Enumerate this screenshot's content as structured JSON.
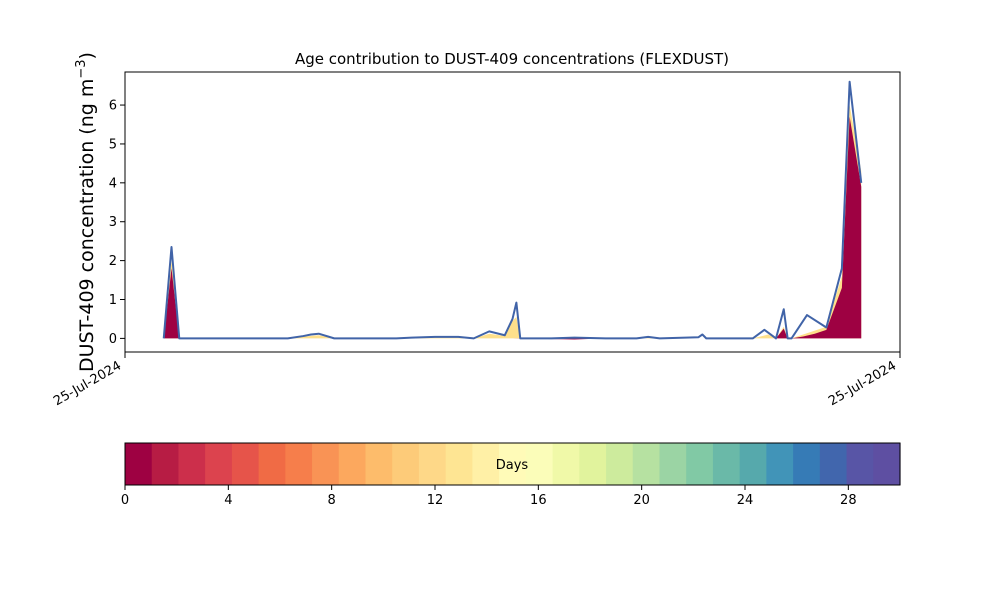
{
  "chart_data": [
    {
      "type": "area",
      "title": "Age contribution to DUST-409 concentrations (FLEXDUST)",
      "ylabel": "DUST-409 concentration (ng m",
      "ylabel_sup": "−3",
      "ylabel_close": ")",
      "xlabel": "",
      "ylim": [
        -0.35,
        6.85
      ],
      "y_ticks": [
        0,
        1,
        2,
        3,
        4,
        5,
        6
      ],
      "x_tick_labels": [
        "25-Jul-2024",
        "25-Jul-2024"
      ],
      "grid": false,
      "series": [
        {
          "color": "#9e0142",
          "points": [
            [
              0.05,
              0
            ],
            [
              0.06,
              1.8
            ],
            [
              0.07,
              0
            ],
            [
              0.5,
              0
            ],
            [
              0.58,
              -0.03
            ],
            [
              0.62,
              0
            ],
            [
              0.84,
              0
            ],
            [
              0.85,
              0.25
            ],
            [
              0.855,
              0
            ],
            [
              0.86,
              0
            ],
            [
              0.875,
              0.05
            ],
            [
              0.89,
              0.12
            ],
            [
              0.905,
              0.22
            ],
            [
              0.925,
              1.3
            ],
            [
              0.935,
              5.7
            ],
            [
              0.95,
              3.9
            ]
          ]
        },
        {
          "color": "#fee08b",
          "points": [
            [
              0.05,
              0
            ],
            [
              0.06,
              2.0
            ],
            [
              0.07,
              0
            ],
            [
              0.21,
              0
            ],
            [
              0.23,
              0.05
            ],
            [
              0.25,
              0.08
            ],
            [
              0.27,
              0
            ],
            [
              0.35,
              0
            ],
            [
              0.4,
              0.02
            ],
            [
              0.43,
              0.02
            ],
            [
              0.45,
              0
            ],
            [
              0.47,
              0.12
            ],
            [
              0.49,
              0.06
            ],
            [
              0.5,
              0.45
            ],
            [
              0.505,
              0.55
            ],
            [
              0.51,
              0
            ],
            [
              0.67,
              0
            ],
            [
              0.68,
              0.03
            ],
            [
              0.69,
              0
            ],
            [
              0.81,
              0
            ],
            [
              0.83,
              0.1
            ],
            [
              0.84,
              0
            ],
            [
              0.85,
              0.3
            ],
            [
              0.855,
              0
            ],
            [
              0.86,
              0
            ],
            [
              0.875,
              0.1
            ],
            [
              0.89,
              0.2
            ],
            [
              0.905,
              0.3
            ],
            [
              0.925,
              1.6
            ],
            [
              0.935,
              6.0
            ],
            [
              0.95,
              4.3
            ]
          ]
        }
      ],
      "total": {
        "color": "#4164a8",
        "points": [
          [
            0.05,
            0
          ],
          [
            0.06,
            2.35
          ],
          [
            0.07,
            0
          ],
          [
            0.21,
            0
          ],
          [
            0.23,
            0.06
          ],
          [
            0.24,
            0.1
          ],
          [
            0.25,
            0.12
          ],
          [
            0.27,
            0
          ],
          [
            0.35,
            0
          ],
          [
            0.37,
            0.02
          ],
          [
            0.4,
            0.04
          ],
          [
            0.43,
            0.04
          ],
          [
            0.45,
            0
          ],
          [
            0.47,
            0.18
          ],
          [
            0.49,
            0.08
          ],
          [
            0.5,
            0.5
          ],
          [
            0.505,
            0.92
          ],
          [
            0.51,
            0
          ],
          [
            0.55,
            0
          ],
          [
            0.58,
            0.02
          ],
          [
            0.62,
            0
          ],
          [
            0.66,
            0
          ],
          [
            0.675,
            0.04
          ],
          [
            0.69,
            0
          ],
          [
            0.74,
            0.03
          ],
          [
            0.745,
            0.1
          ],
          [
            0.75,
            0
          ],
          [
            0.81,
            0
          ],
          [
            0.825,
            0.22
          ],
          [
            0.84,
            0
          ],
          [
            0.85,
            0.75
          ],
          [
            0.855,
            0
          ],
          [
            0.86,
            0
          ],
          [
            0.88,
            0.6
          ],
          [
            0.905,
            0.28
          ],
          [
            0.925,
            1.8
          ],
          [
            0.935,
            6.6
          ],
          [
            0.95,
            4.0
          ]
        ]
      }
    },
    {
      "type": "heatmap",
      "label": "Days",
      "range": [
        0,
        30
      ],
      "ticks": [
        0,
        4,
        8,
        12,
        16,
        20,
        24,
        28
      ],
      "colors": [
        "#9e0142",
        "#b71c44",
        "#cc2f4b",
        "#dc434e",
        "#e6544a",
        "#f06b45",
        "#f67e4b",
        "#f99355",
        "#fca85e",
        "#fdbc6b",
        "#fdcb79",
        "#fed888",
        "#fee593",
        "#fff0a6",
        "#fffbb8",
        "#fbfdb9",
        "#f0f9a8",
        "#e1f39d",
        "#cdeb9d",
        "#b6e1a1",
        "#9bd4a4",
        "#81c9a5",
        "#6ab9a8",
        "#56a9ac",
        "#4194b8",
        "#367bb6",
        "#4166ad",
        "#5855a6",
        "#5e4fa2"
      ]
    }
  ]
}
